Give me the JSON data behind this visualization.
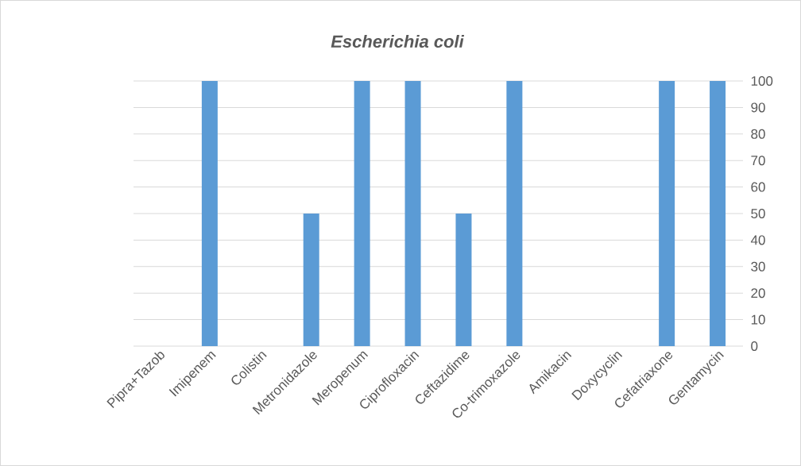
{
  "chart_data": {
    "type": "bar",
    "title": "Escherichia coli",
    "categories": [
      "Pipra+Tazob",
      "Imipenem",
      "Colistin",
      "Metronidazole",
      "Meropenum",
      "Ciprofloxacin",
      "Ceftazidime",
      "Co-trimoxazole",
      "Amikacin",
      "Doxycyclin",
      "Cefatriaxone",
      "Gentamycin"
    ],
    "values": [
      0,
      100,
      0,
      50,
      100,
      100,
      50,
      100,
      0,
      0,
      100,
      100
    ],
    "color": "#5b9bd5",
    "ylim": [
      0,
      100
    ],
    "yticks": [
      0,
      10,
      20,
      30,
      40,
      50,
      60,
      70,
      80,
      90,
      100
    ],
    "grid": "y"
  }
}
